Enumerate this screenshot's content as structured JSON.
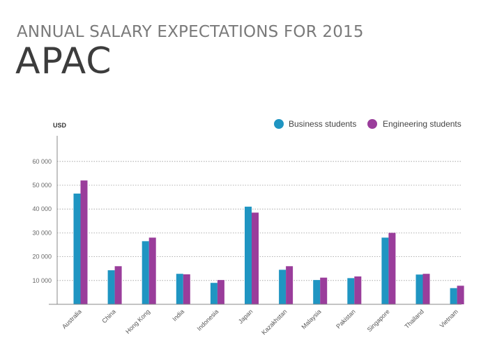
{
  "header": {
    "title": "ANNUAL SALARY EXPECTATIONS FOR 2015",
    "subtitle": "APAC"
  },
  "colors": {
    "business": "#1f95c2",
    "engineering": "#9a3d9b",
    "grid": "#999999",
    "axis": "#888888"
  },
  "chart_data": {
    "type": "bar",
    "title": "ANNUAL SALARY EXPECTATIONS FOR 2015",
    "subtitle": "APAC",
    "unit_label": "USD",
    "ylim": [
      0,
      70000
    ],
    "yticks": [
      10000,
      20000,
      30000,
      40000,
      50000,
      60000
    ],
    "ytick_labels": [
      "10 000",
      "20 000",
      "30 000",
      "40 000",
      "50 000",
      "60 000"
    ],
    "grid": true,
    "legend_position": "top-right",
    "categories": [
      "Australia",
      "China",
      "Hong Kong",
      "India",
      "Indonesia",
      "Japan",
      "Kazakhstan",
      "Malaysia",
      "Pakistan",
      "Singapore",
      "Thailand",
      "Vietnam"
    ],
    "series": [
      {
        "name": "Business students",
        "color": "#1f95c2",
        "values": [
          46500,
          14300,
          26500,
          12800,
          9000,
          41000,
          14500,
          10200,
          11000,
          28000,
          12500,
          6800
        ]
      },
      {
        "name": "Engineering students",
        "color": "#9a3d9b",
        "values": [
          52000,
          16000,
          28000,
          12600,
          10200,
          38500,
          16000,
          11200,
          11700,
          30000,
          12800,
          7800
        ]
      }
    ]
  }
}
